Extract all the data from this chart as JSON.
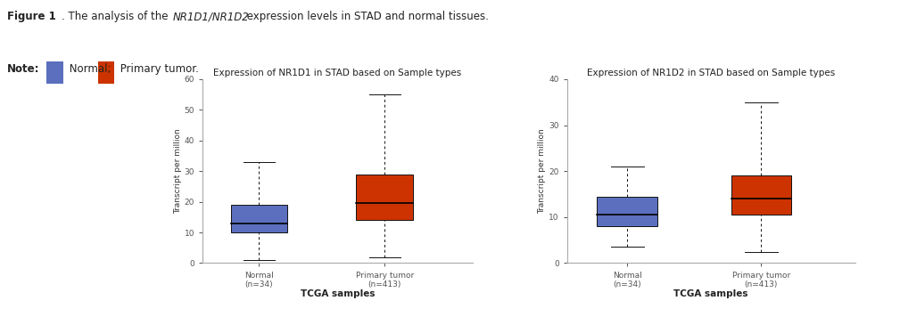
{
  "fig_width": 10.09,
  "fig_height": 3.56,
  "dpi": 100,
  "figure_title_bold": "Figure 1",
  "figure_caption": ". The analysis of the ",
  "figure_italic": "NR1D1/NR1D2",
  "figure_caption2": " expression levels in STAD and normal tissues.",
  "note_label": "Note:",
  "note_normal_text": " Normal;",
  "note_tumor_text": " Primary tumor.",
  "normal_color": "#5B6FBE",
  "tumor_color": "#CC3300",
  "plot1_title": "Expression of NR1D1 in STAD based on Sample types",
  "plot2_title": "Expression of NR1D2 in STAD based on Sample types",
  "xlabel": "TCGA samples",
  "ylabel": "Transcript per million",
  "cat_normal": "Normal\n(n=34)",
  "cat_tumor": "Primary tumor\n(n=413)",
  "plot1_ylim": [
    0,
    60
  ],
  "plot1_yticks": [
    0,
    10,
    20,
    30,
    40,
    50,
    60
  ],
  "plot2_ylim": [
    0,
    40
  ],
  "plot2_yticks": [
    0,
    10,
    20,
    30,
    40
  ],
  "plot1_normal": {
    "whisker_low": 1,
    "q1": 10,
    "median": 13,
    "q3": 19,
    "whisker_high": 33
  },
  "plot1_tumor": {
    "whisker_low": 2,
    "q1": 14,
    "median": 19.5,
    "q3": 29,
    "whisker_high": 55
  },
  "plot2_normal": {
    "whisker_low": 3.5,
    "q1": 8,
    "median": 10.5,
    "q3": 14.5,
    "whisker_high": 21
  },
  "plot2_tumor": {
    "whisker_low": 2.5,
    "q1": 10.5,
    "median": 14,
    "q3": 19,
    "whisker_high": 35
  },
  "box_width": 0.45,
  "median_color": "#000000",
  "background_color": "#ffffff",
  "spine_color": "#aaaaaa",
  "title_fontsize": 7.5,
  "axis_label_fontsize": 6.5,
  "tick_fontsize": 6.5,
  "header_fontsize": 8.5,
  "note_fontsize": 8.5,
  "xlabel_fontsize": 7.5
}
